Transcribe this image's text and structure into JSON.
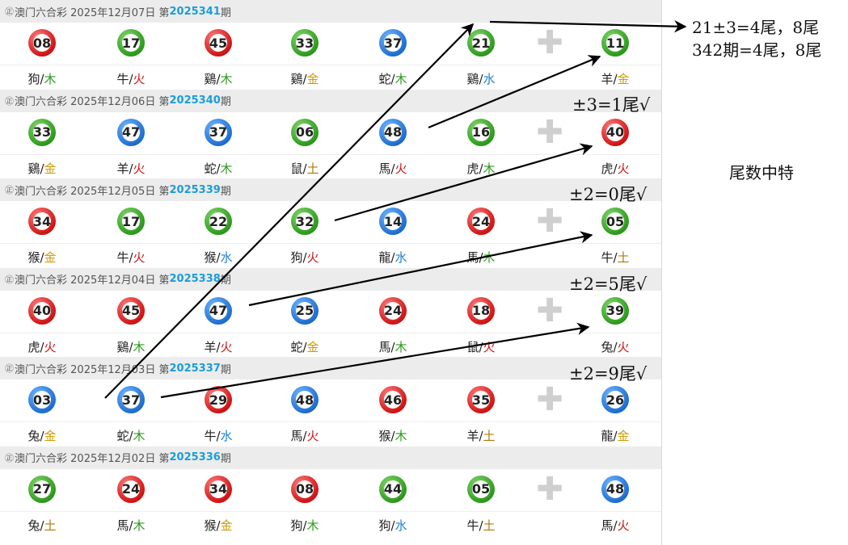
{
  "draws": [
    {
      "logo": "㊣",
      "title": "澳门六合彩",
      "date": "2025年12月07日",
      "period_prefix": "第",
      "period": "2025341",
      "period_suffix": "期",
      "plus": "✚",
      "balls": [
        {
          "num": "08",
          "color": "red",
          "zodiac": "狗",
          "element": "木",
          "el": "wood"
        },
        {
          "num": "17",
          "color": "green",
          "zodiac": "牛",
          "element": "火",
          "el": "fire"
        },
        {
          "num": "45",
          "color": "red",
          "zodiac": "鷄",
          "element": "木",
          "el": "wood"
        },
        {
          "num": "33",
          "color": "green",
          "zodiac": "鷄",
          "element": "金",
          "el": "gold"
        },
        {
          "num": "37",
          "color": "blue",
          "zodiac": "蛇",
          "element": "木",
          "el": "wood"
        },
        {
          "num": "21",
          "color": "green",
          "zodiac": "鷄",
          "element": "水",
          "el": "water"
        },
        {
          "num": "11",
          "color": "green",
          "zodiac": "羊",
          "element": "金",
          "el": "gold"
        }
      ]
    },
    {
      "logo": "㊣",
      "title": "澳门六合彩",
      "date": "2025年12月06日",
      "period_prefix": "第",
      "period": "2025340",
      "period_suffix": "期",
      "plus": "✚",
      "balls": [
        {
          "num": "33",
          "color": "green",
          "zodiac": "鷄",
          "element": "金",
          "el": "gold"
        },
        {
          "num": "47",
          "color": "blue",
          "zodiac": "羊",
          "element": "火",
          "el": "fire"
        },
        {
          "num": "37",
          "color": "blue",
          "zodiac": "蛇",
          "element": "木",
          "el": "wood"
        },
        {
          "num": "06",
          "color": "green",
          "zodiac": "鼠",
          "element": "土",
          "el": "earth"
        },
        {
          "num": "48",
          "color": "blue",
          "zodiac": "馬",
          "element": "火",
          "el": "fire"
        },
        {
          "num": "16",
          "color": "green",
          "zodiac": "虎",
          "element": "木",
          "el": "wood"
        },
        {
          "num": "40",
          "color": "red",
          "zodiac": "虎",
          "element": "火",
          "el": "fire"
        }
      ]
    },
    {
      "logo": "㊣",
      "title": "澳门六合彩",
      "date": "2025年12月05日",
      "period_prefix": "第",
      "period": "2025339",
      "period_suffix": "期",
      "plus": "✚",
      "balls": [
        {
          "num": "34",
          "color": "red",
          "zodiac": "猴",
          "element": "金",
          "el": "gold"
        },
        {
          "num": "17",
          "color": "green",
          "zodiac": "牛",
          "element": "火",
          "el": "fire"
        },
        {
          "num": "22",
          "color": "green",
          "zodiac": "猴",
          "element": "水",
          "el": "water"
        },
        {
          "num": "32",
          "color": "green",
          "zodiac": "狗",
          "element": "火",
          "el": "fire"
        },
        {
          "num": "14",
          "color": "blue",
          "zodiac": "龍",
          "element": "水",
          "el": "water"
        },
        {
          "num": "24",
          "color": "red",
          "zodiac": "馬",
          "element": "木",
          "el": "wood"
        },
        {
          "num": "05",
          "color": "green",
          "zodiac": "牛",
          "element": "土",
          "el": "earth"
        }
      ]
    },
    {
      "logo": "㊣",
      "title": "澳门六合彩",
      "date": "2025年12月04日",
      "period_prefix": "第",
      "period": "2025338",
      "period_suffix": "期",
      "plus": "✚",
      "balls": [
        {
          "num": "40",
          "color": "red",
          "zodiac": "虎",
          "element": "火",
          "el": "fire"
        },
        {
          "num": "45",
          "color": "red",
          "zodiac": "鷄",
          "element": "木",
          "el": "wood"
        },
        {
          "num": "47",
          "color": "blue",
          "zodiac": "羊",
          "element": "火",
          "el": "fire"
        },
        {
          "num": "25",
          "color": "blue",
          "zodiac": "蛇",
          "element": "金",
          "el": "gold"
        },
        {
          "num": "24",
          "color": "red",
          "zodiac": "馬",
          "element": "木",
          "el": "wood"
        },
        {
          "num": "18",
          "color": "red",
          "zodiac": "鼠",
          "element": "火",
          "el": "fire"
        },
        {
          "num": "39",
          "color": "green",
          "zodiac": "兔",
          "element": "火",
          "el": "fire"
        }
      ]
    },
    {
      "logo": "㊣",
      "title": "澳门六合彩",
      "date": "2025年12月03日",
      "period_prefix": "第",
      "period": "2025337",
      "period_suffix": "期",
      "plus": "✚",
      "balls": [
        {
          "num": "03",
          "color": "blue",
          "zodiac": "兔",
          "element": "金",
          "el": "gold"
        },
        {
          "num": "37",
          "color": "blue",
          "zodiac": "蛇",
          "element": "木",
          "el": "wood"
        },
        {
          "num": "29",
          "color": "red",
          "zodiac": "牛",
          "element": "水",
          "el": "water"
        },
        {
          "num": "48",
          "color": "blue",
          "zodiac": "馬",
          "element": "火",
          "el": "fire"
        },
        {
          "num": "46",
          "color": "red",
          "zodiac": "猴",
          "element": "木",
          "el": "wood"
        },
        {
          "num": "35",
          "color": "red",
          "zodiac": "羊",
          "element": "土",
          "el": "earth"
        },
        {
          "num": "26",
          "color": "blue",
          "zodiac": "龍",
          "element": "金",
          "el": "gold"
        }
      ]
    },
    {
      "logo": "㊣",
      "title": "澳门六合彩",
      "date": "2025年12月02日",
      "period_prefix": "第",
      "period": "2025336",
      "period_suffix": "期",
      "plus": "✚",
      "balls": [
        {
          "num": "27",
          "color": "green",
          "zodiac": "兔",
          "element": "土",
          "el": "earth"
        },
        {
          "num": "24",
          "color": "red",
          "zodiac": "馬",
          "element": "木",
          "el": "wood"
        },
        {
          "num": "34",
          "color": "red",
          "zodiac": "猴",
          "element": "金",
          "el": "gold"
        },
        {
          "num": "08",
          "color": "red",
          "zodiac": "狗",
          "element": "木",
          "el": "wood"
        },
        {
          "num": "44",
          "color": "green",
          "zodiac": "狗",
          "element": "水",
          "el": "water"
        },
        {
          "num": "05",
          "color": "green",
          "zodiac": "牛",
          "element": "土",
          "el": "earth"
        },
        {
          "num": "48",
          "color": "blue",
          "zodiac": "馬",
          "element": "火",
          "el": "fire"
        }
      ]
    }
  ],
  "annotations": {
    "top_line1": "21±3=4尾，8尾",
    "top_line2": "342期=4尾，8尾",
    "note_340": "±3=1尾√",
    "note_339": "±2=0尾√",
    "note_338": "±2=5尾√",
    "note_337": "±2=9尾√",
    "side_label": "尾数中特"
  },
  "colors": {
    "red_ball": "#d01515",
    "green_ball": "#2e9b1d",
    "blue_ball": "#1f6fd0",
    "period_accent": "#1a9ed8",
    "header_bg": "#ececec"
  }
}
